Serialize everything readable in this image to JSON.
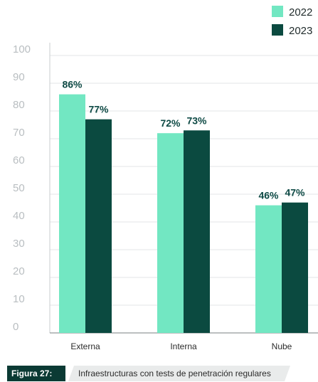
{
  "chart_data": {
    "type": "bar",
    "categories": [
      "Externa",
      "Interna",
      "Nube"
    ],
    "series": [
      {
        "name": "2022",
        "values": [
          86,
          72,
          46
        ],
        "labels": [
          "86%",
          "72%",
          "46%"
        ],
        "color": "#72e7c2"
      },
      {
        "name": "2023",
        "values": [
          77,
          73,
          47
        ],
        "labels": [
          "77%",
          "73%",
          "47%"
        ],
        "color": "#0b4a40"
      }
    ],
    "yticks": [
      "0",
      "10",
      "20",
      "30",
      "40",
      "50",
      "60",
      "70",
      "80",
      "90",
      "100"
    ],
    "ylim": [
      0,
      100
    ],
    "grid": true,
    "legend": "top-right"
  },
  "caption": {
    "figure_label": "Figura 27:",
    "text": "Infraestructuras con tests de penetración regulares"
  }
}
